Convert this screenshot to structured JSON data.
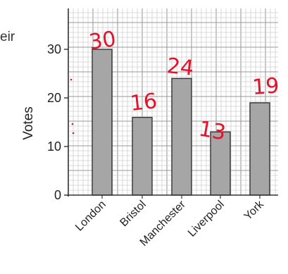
{
  "page": {
    "cropped_text": "eir"
  },
  "chart_data": {
    "type": "bar",
    "categories": [
      "London",
      "Bristol",
      "Manchester",
      "Liverpool",
      "York"
    ],
    "values": [
      30,
      16,
      24,
      13,
      19
    ],
    "ylabel": "Votes",
    "xlabel": "",
    "ylim": [
      0,
      37
    ],
    "yticks": [
      "0",
      "10",
      "20",
      "30"
    ],
    "grid": true,
    "handwritten_annotations": [
      "30",
      "16",
      "24",
      "13",
      "19"
    ],
    "colors": {
      "bar_fill": "#a6a6a6",
      "bar_stroke": "#333333",
      "grid_minor": "#cfcfcf",
      "grid_major": "#9a9a9a",
      "annotation": "#e0142b"
    }
  }
}
